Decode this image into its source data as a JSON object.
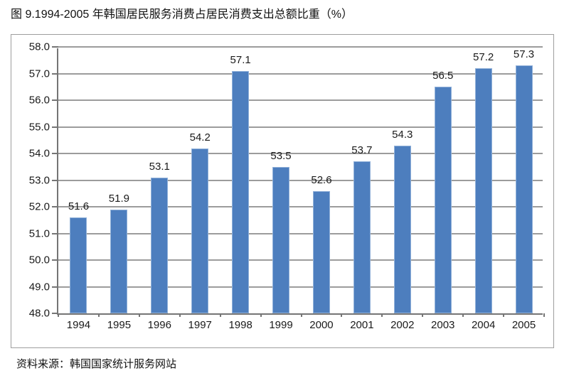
{
  "chart_data": {
    "type": "bar",
    "title": "图 9.1994-2005 年韩国居民服务消费占居民消费支出总额比重（%）",
    "source": "资料来源：韩国国家统计服务网站",
    "categories": [
      "1994",
      "1995",
      "1996",
      "1997",
      "1998",
      "1999",
      "2000",
      "2001",
      "2002",
      "2003",
      "2004",
      "2005"
    ],
    "values": [
      51.6,
      51.9,
      53.1,
      54.2,
      57.1,
      53.5,
      52.6,
      53.7,
      54.3,
      56.5,
      57.2,
      57.3
    ],
    "data_labels": [
      "51.6",
      "51.9",
      "53.1",
      "54.2",
      "57.1",
      "53.5",
      "52.6",
      "53.7",
      "54.3",
      "56.5",
      "57.2",
      "57.3"
    ],
    "ytick_labels": [
      "48.0",
      "49.0",
      "50.0",
      "51.0",
      "52.0",
      "53.0",
      "54.0",
      "55.0",
      "56.0",
      "57.0",
      "58.0"
    ],
    "xlabel": "",
    "ylabel": "",
    "ylim": [
      48.0,
      58.0
    ],
    "ytick_step": 1.0,
    "grid": true,
    "legend": false,
    "bar_color": "#4D7EBE",
    "bar_border_color": "#91B1D9",
    "gridline_color": "#9C9C9C",
    "axis_color": "#757575"
  }
}
